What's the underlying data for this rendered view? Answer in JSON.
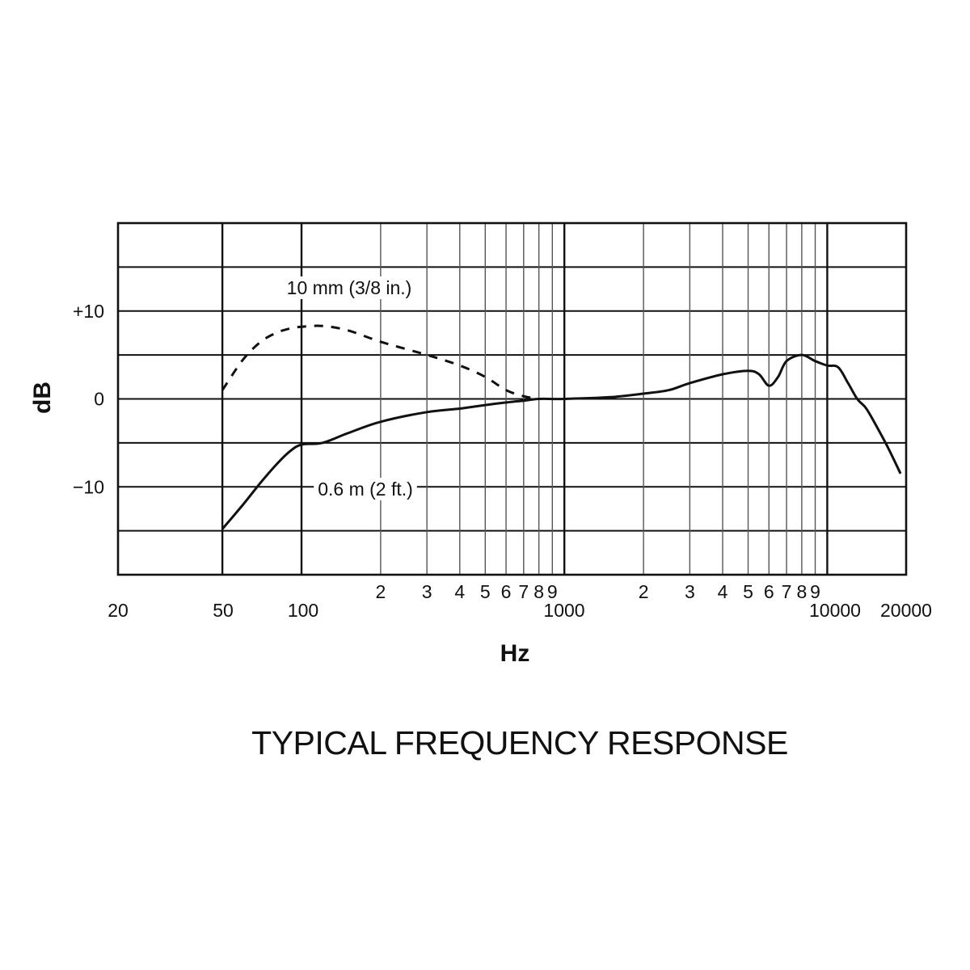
{
  "chart_data": {
    "type": "line",
    "title": "TYPICAL FREQUENCY RESPONSE",
    "xlabel": "Hz",
    "ylabel": "dB",
    "xscale": "log",
    "xlim": [
      20,
      20000
    ],
    "ylim": [
      -20,
      20
    ],
    "grid": true,
    "colors": {
      "line": "#111111",
      "grid": "#111111",
      "minor_grid": "#555555"
    },
    "x_ticks": [
      {
        "value": 20,
        "label": "20"
      },
      {
        "value": 50,
        "label": "50"
      },
      {
        "value": 100,
        "label": "100"
      },
      {
        "value": 200,
        "label": "2"
      },
      {
        "value": 300,
        "label": "3"
      },
      {
        "value": 400,
        "label": "4"
      },
      {
        "value": 500,
        "label": "5"
      },
      {
        "value": 600,
        "label": "6"
      },
      {
        "value": 700,
        "label": "7"
      },
      {
        "value": 800,
        "label": "8"
      },
      {
        "value": 900,
        "label": "9"
      },
      {
        "value": 1000,
        "label": "1000"
      },
      {
        "value": 2000,
        "label": "2"
      },
      {
        "value": 3000,
        "label": "3"
      },
      {
        "value": 4000,
        "label": "4"
      },
      {
        "value": 5000,
        "label": "5"
      },
      {
        "value": 6000,
        "label": "6"
      },
      {
        "value": 7000,
        "label": "7"
      },
      {
        "value": 8000,
        "label": "8"
      },
      {
        "value": 9000,
        "label": "9"
      },
      {
        "value": 10000,
        "label": "10000"
      },
      {
        "value": 20000,
        "label": "20000"
      }
    ],
    "y_ticks": [
      {
        "value": 10,
        "label": "+10"
      },
      {
        "value": 0,
        "label": "0"
      },
      {
        "value": -10,
        "label": "−10"
      }
    ],
    "series": [
      {
        "name": "0.6 m (2 ft.)",
        "style": "solid",
        "x": [
          50,
          60,
          70,
          80,
          90,
          100,
          120,
          150,
          200,
          300,
          400,
          500,
          600,
          700,
          800,
          1000,
          1500,
          2000,
          2500,
          3000,
          4000,
          5000,
          5500,
          6000,
          6500,
          7000,
          8000,
          9000,
          10000,
          11000,
          12000,
          13000,
          14000,
          15000,
          17000,
          19000
        ],
        "y": [
          -14.8,
          -12,
          -9.5,
          -7.5,
          -6,
          -5.2,
          -5,
          -3.9,
          -2.6,
          -1.5,
          -1.1,
          -0.7,
          -0.4,
          -0.2,
          0,
          0,
          0.2,
          0.6,
          1,
          1.8,
          2.8,
          3.2,
          2.8,
          1.5,
          2.5,
          4.3,
          5,
          4.3,
          3.8,
          3.6,
          1.8,
          0,
          -1,
          -2.5,
          -5.5,
          -8.5
        ]
      },
      {
        "name": "10 mm (3/8 in.)",
        "style": "dashed",
        "x": [
          50,
          60,
          70,
          80,
          90,
          100,
          120,
          150,
          200,
          300,
          400,
          500,
          600,
          700,
          800
        ],
        "y": [
          1,
          4.5,
          6.5,
          7.5,
          8,
          8.2,
          8.3,
          7.8,
          6.5,
          5,
          3.8,
          2.5,
          1,
          0.3,
          0
        ]
      }
    ]
  }
}
